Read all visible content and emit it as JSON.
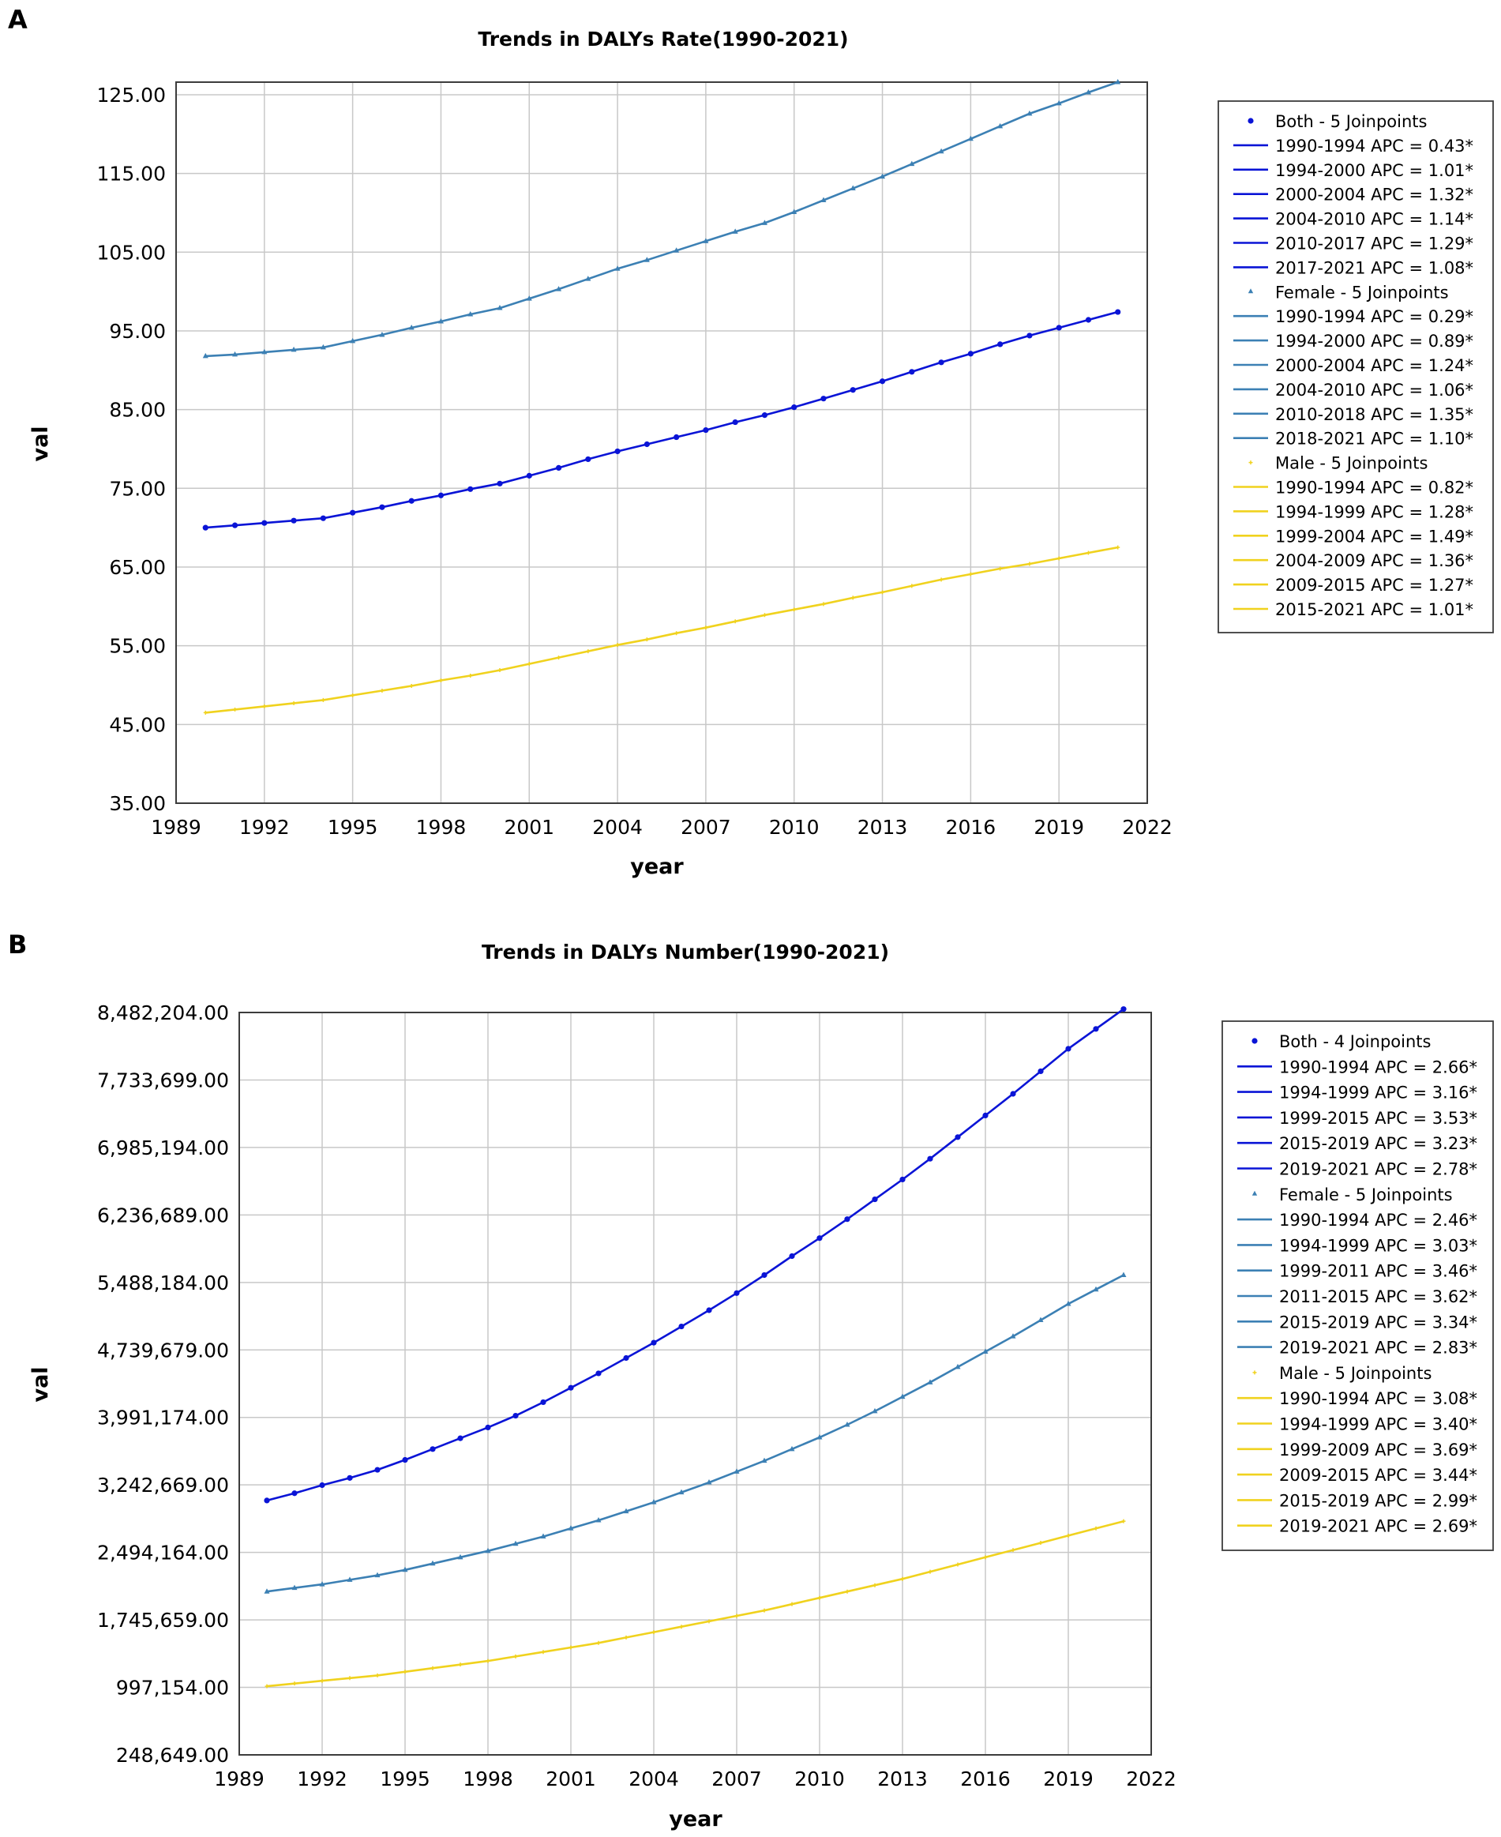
{
  "panels": [
    "A",
    "B"
  ],
  "colors": {
    "both": "#0a14d6",
    "female": "#3c80b4",
    "male": "#f0d21e",
    "grid": "#c8c8c8",
    "frame": "#3c3c3c"
  },
  "chart_data": [
    {
      "type": "line",
      "title": "Trends in DALYs Rate(1990-2021)",
      "xlabel": "year",
      "ylabel": "val",
      "xlim": [
        1989,
        2022
      ],
      "xticks": [
        "1989",
        "1992",
        "1995",
        "1998",
        "2001",
        "2004",
        "2007",
        "2010",
        "2013",
        "2016",
        "2019",
        "2022"
      ],
      "ylim": [
        35,
        126.6
      ],
      "yticks": [
        "125.00",
        "115.00",
        "105.00",
        "95.00",
        "85.00",
        "75.00",
        "65.00",
        "55.00",
        "45.00",
        "35.00"
      ],
      "ytick_values": [
        125,
        115,
        105,
        95,
        85,
        75,
        65,
        55,
        45,
        35
      ],
      "grid": true,
      "legend_position": "right",
      "x": [
        1990,
        1991,
        1992,
        1993,
        1994,
        1995,
        1996,
        1997,
        1998,
        1999,
        2000,
        2001,
        2002,
        2003,
        2004,
        2005,
        2006,
        2007,
        2008,
        2009,
        2010,
        2011,
        2012,
        2013,
        2014,
        2015,
        2016,
        2017,
        2018,
        2019,
        2020,
        2021
      ],
      "series": [
        {
          "key": "both",
          "marker": "dot",
          "values": [
            70.0,
            70.3,
            70.6,
            70.9,
            71.2,
            71.9,
            72.6,
            73.4,
            74.1,
            74.9,
            75.6,
            76.6,
            77.6,
            78.7,
            79.7,
            80.6,
            81.5,
            82.4,
            83.4,
            84.3,
            85.3,
            86.4,
            87.5,
            88.6,
            89.8,
            91.0,
            92.1,
            93.3,
            94.4,
            95.4,
            96.4,
            97.4
          ],
          "legend": [
            "Both - 5 Joinpoints",
            "1990-1994 APC  = 0.43*",
            "1994-2000 APC  = 1.01*",
            "2000-2004 APC  = 1.32*",
            "2004-2010 APC  = 1.14*",
            "2010-2017 APC  = 1.29*",
            "2017-2021 APC  = 1.08*"
          ]
        },
        {
          "key": "female",
          "marker": "triangle",
          "values": [
            91.8,
            92.0,
            92.3,
            92.6,
            92.9,
            93.7,
            94.5,
            95.4,
            96.2,
            97.1,
            97.9,
            99.1,
            100.3,
            101.6,
            102.9,
            104.0,
            105.2,
            106.4,
            107.6,
            108.7,
            110.1,
            111.6,
            113.1,
            114.6,
            116.2,
            117.8,
            119.4,
            121.0,
            122.6,
            123.9,
            125.3,
            126.6
          ],
          "legend": [
            "Female - 5 Joinpoints",
            "1990-1994 APC  = 0.29*",
            "1994-2000 APC  = 0.89*",
            "2000-2004 APC  = 1.24*",
            "2004-2010 APC  = 1.06*",
            "2010-2018 APC  = 1.35*",
            "2018-2021 APC  = 1.10*"
          ]
        },
        {
          "key": "male",
          "marker": "plus",
          "values": [
            46.5,
            46.9,
            47.3,
            47.7,
            48.1,
            48.7,
            49.3,
            49.9,
            50.6,
            51.2,
            51.9,
            52.7,
            53.5,
            54.3,
            55.1,
            55.8,
            56.6,
            57.3,
            58.1,
            58.9,
            59.6,
            60.3,
            61.1,
            61.8,
            62.6,
            63.4,
            64.1,
            64.8,
            65.4,
            66.1,
            66.8,
            67.5
          ],
          "legend": [
            "Male - 5 Joinpoints",
            "1990-1994 APC  = 0.82*",
            "1994-1999 APC  = 1.28*",
            "1999-2004 APC  = 1.49*",
            "2004-2009 APC  = 1.36*",
            "2009-2015 APC  = 1.27*",
            "2015-2021 APC  = 1.01*"
          ]
        }
      ]
    },
    {
      "type": "line",
      "title": "Trends in DALYs Number(1990-2021)",
      "xlabel": "year",
      "ylabel": "val",
      "xlim": [
        1989,
        2022
      ],
      "xticks": [
        "1989",
        "1992",
        "1995",
        "1998",
        "2001",
        "2004",
        "2007",
        "2010",
        "2013",
        "2016",
        "2019",
        "2022"
      ],
      "ylim": [
        248649,
        8482204
      ],
      "yticks": [
        "8,482,204.00",
        "7,733,699.00",
        "6,985,194.00",
        "6,236,689.00",
        "5,488,184.00",
        "4,739,679.00",
        "3,991,174.00",
        "3,242,669.00",
        "2,494,164.00",
        "1,745,659.00",
        "997,154.00",
        "248,649.00"
      ],
      "ytick_values": [
        8482204,
        7733699,
        6985194,
        6236689,
        5488184,
        4739679,
        3991174,
        3242669,
        2494164,
        1745659,
        997154,
        248649
      ],
      "grid": true,
      "legend_position": "right",
      "x": [
        1990,
        1991,
        1992,
        1993,
        1994,
        1995,
        1996,
        1997,
        1998,
        1999,
        2000,
        2001,
        2002,
        2003,
        2004,
        2005,
        2006,
        2007,
        2008,
        2009,
        2010,
        2011,
        2012,
        2013,
        2014,
        2015,
        2016,
        2017,
        2018,
        2019,
        2020,
        2021
      ],
      "series": [
        {
          "key": "both",
          "marker": "dot",
          "values": [
            3070000,
            3150000,
            3240000,
            3320000,
            3410000,
            3520000,
            3640000,
            3760000,
            3880000,
            4010000,
            4160000,
            4320000,
            4480000,
            4650000,
            4820000,
            5000000,
            5180000,
            5370000,
            5570000,
            5780000,
            5980000,
            6190000,
            6410000,
            6630000,
            6860000,
            7100000,
            7340000,
            7580000,
            7830000,
            8080000,
            8300000,
            8520000
          ],
          "legend": [
            "Both - 4 Joinpoints",
            "1990-1994 APC  = 2.66*",
            "1994-1999 APC  = 3.16*",
            "1999-2015 APC  = 3.53*",
            "2015-2019 APC  = 3.23*",
            "2019-2021 APC  = 2.78*"
          ]
        },
        {
          "key": "female",
          "marker": "triangle",
          "values": [
            2060000,
            2100000,
            2140000,
            2190000,
            2240000,
            2300000,
            2370000,
            2440000,
            2510000,
            2590000,
            2670000,
            2760000,
            2850000,
            2950000,
            3050000,
            3160000,
            3270000,
            3390000,
            3510000,
            3640000,
            3770000,
            3910000,
            4060000,
            4220000,
            4380000,
            4550000,
            4720000,
            4890000,
            5070000,
            5250000,
            5410000,
            5570000
          ],
          "legend": [
            "Female - 5 Joinpoints",
            "1990-1994 APC  = 2.46*",
            "1994-1999 APC  = 3.03*",
            "1999-2011 APC  = 3.46*",
            "2011-2015 APC  = 3.62*",
            "2015-2019 APC  = 3.34*",
            "2019-2021 APC  = 2.83*"
          ]
        },
        {
          "key": "male",
          "marker": "plus",
          "values": [
            1010000,
            1040000,
            1070000,
            1100000,
            1130000,
            1170000,
            1210000,
            1250000,
            1290000,
            1340000,
            1390000,
            1440000,
            1490000,
            1550000,
            1610000,
            1670000,
            1730000,
            1790000,
            1850000,
            1920000,
            1990000,
            2060000,
            2130000,
            2200000,
            2280000,
            2360000,
            2440000,
            2520000,
            2600000,
            2680000,
            2760000,
            2840000
          ],
          "legend": [
            "Male - 5 Joinpoints",
            "1990-1994 APC  = 3.08*",
            "1994-1999 APC  = 3.40*",
            "1999-2009 APC  = 3.69*",
            "2009-2015 APC  = 3.44*",
            "2015-2019 APC  = 2.99*",
            "2019-2021 APC  = 2.69*"
          ]
        }
      ]
    }
  ]
}
